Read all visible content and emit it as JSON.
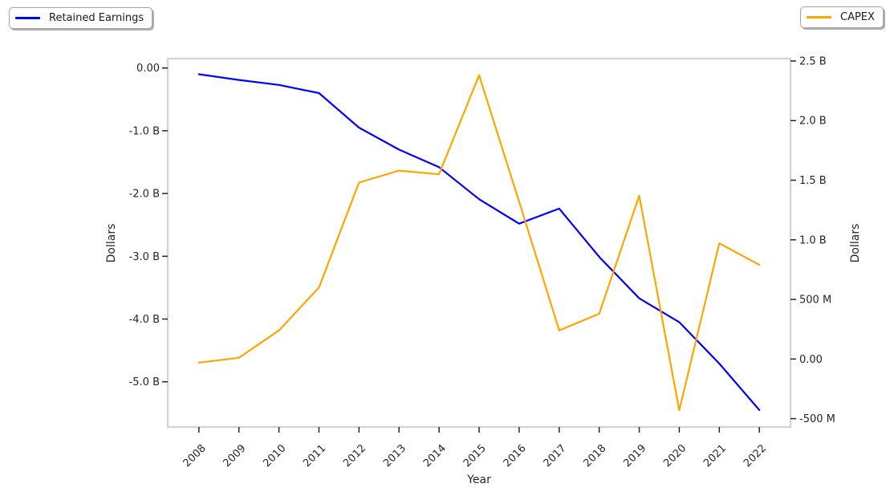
{
  "figure": {
    "background": "#ffffff",
    "frame_color": "#d4d4d4",
    "tick_color": "#262626",
    "text_color": "#262626"
  },
  "chart_data": {
    "type": "line",
    "x": [
      2008,
      2009,
      2010,
      2011,
      2012,
      2013,
      2014,
      2015,
      2016,
      2017,
      2018,
      2019,
      2020,
      2021,
      2022
    ],
    "series": [
      {
        "name": "Retained Earnings",
        "axis": "left",
        "color": "#0000ff",
        "values_billions": [
          -0.1,
          -0.19,
          -0.27,
          -0.4,
          -0.95,
          -1.3,
          -1.58,
          -2.09,
          -2.48,
          -2.24,
          -3.01,
          -3.67,
          -4.05,
          -4.71,
          -5.45
        ]
      },
      {
        "name": "CAPEX",
        "axis": "right",
        "color": "#ffa500",
        "values_billions": [
          -0.03,
          0.01,
          0.24,
          0.6,
          1.48,
          1.58,
          1.55,
          2.38,
          1.32,
          0.24,
          0.38,
          1.37,
          -0.43,
          0.97,
          0.79
        ]
      }
    ],
    "xlabel": "Year",
    "ylabel_left": "Dollars",
    "ylabel_right": "Dollars",
    "left_axis": {
      "ylim": [
        -5.72,
        0.15
      ],
      "tick_values": [
        0,
        -1,
        -2,
        -3,
        -4,
        -5
      ],
      "tick_labels": [
        "0.00",
        "-1.0 B",
        "-2.0 B",
        "-3.0 B",
        "-4.0 B",
        "-5.0 B"
      ]
    },
    "right_axis": {
      "ylim": [
        -0.57,
        2.52
      ],
      "tick_values": [
        2.5,
        2.0,
        1.5,
        1.0,
        0.5,
        0,
        -0.5
      ],
      "tick_labels": [
        "2.5 B",
        "2.0 B",
        "1.5 B",
        "1.0 B",
        "500 M",
        "0.00",
        "-500 M"
      ]
    },
    "x_tick_labels": [
      "2008",
      "2009",
      "2010",
      "2011",
      "2012",
      "2013",
      "2014",
      "2015",
      "2016",
      "2017",
      "2018",
      "2019",
      "2020",
      "2021",
      "2022"
    ],
    "legends": [
      {
        "label": "Retained Earnings",
        "color": "#0000ff",
        "position": "top-left"
      },
      {
        "label": "CAPEX",
        "color": "#ffa500",
        "position": "top-right"
      }
    ],
    "grid": false,
    "title": ""
  }
}
